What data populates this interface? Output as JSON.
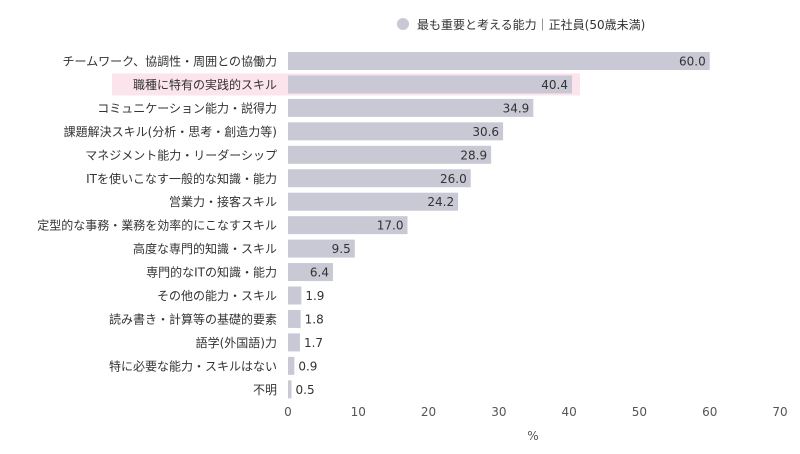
{
  "chart_data": {
    "type": "bar",
    "orientation": "horizontal",
    "legend": {
      "position": "top-right",
      "entries": [
        "最も重要と考える能力｜正社員(50歳未満)"
      ]
    },
    "series": [
      {
        "name": "最も重要と考える能力｜正社員(50歳未満)",
        "color": "#c8c9d4",
        "values": [
          60.0,
          40.4,
          34.9,
          30.6,
          28.9,
          26.0,
          24.2,
          17.0,
          9.5,
          6.4,
          1.9,
          1.8,
          1.7,
          0.9,
          0.5
        ]
      }
    ],
    "categories": [
      "チームワーク、協調性・周囲との協働力",
      "職種に特有の実践的スキル",
      "コミュニケーション能力・説得力",
      "課題解決スキル(分析・思考・創造力等)",
      "マネジメント能力・リーダーシップ",
      "ITを使いこなす一般的な知識・能力",
      "営業力・接客スキル",
      "定型的な事務・業務を効率的にこなすスキル",
      "高度な専門的知識・スキル",
      "専門的なITの知識・能力",
      "その他の能力・スキル",
      "読み書き・計算等の基礎的要素",
      "語学(外国語)力",
      "特に必要な能力・スキルはない",
      "不明"
    ],
    "data_labels": [
      "60.0",
      "40.4",
      "34.9",
      "30.6",
      "28.9",
      "26.0",
      "24.2",
      "17.0",
      "9.5",
      "6.4",
      "1.9",
      "1.8",
      "1.7",
      "0.9",
      "0.5"
    ],
    "highlighted_category": "職種に特有の実践的スキル",
    "highlight_color": "#fbe4ec",
    "xlabel": "%",
    "xlim": [
      0,
      70
    ],
    "xticks": [
      0,
      10,
      20,
      30,
      40,
      50,
      60,
      70
    ],
    "grid": false
  }
}
